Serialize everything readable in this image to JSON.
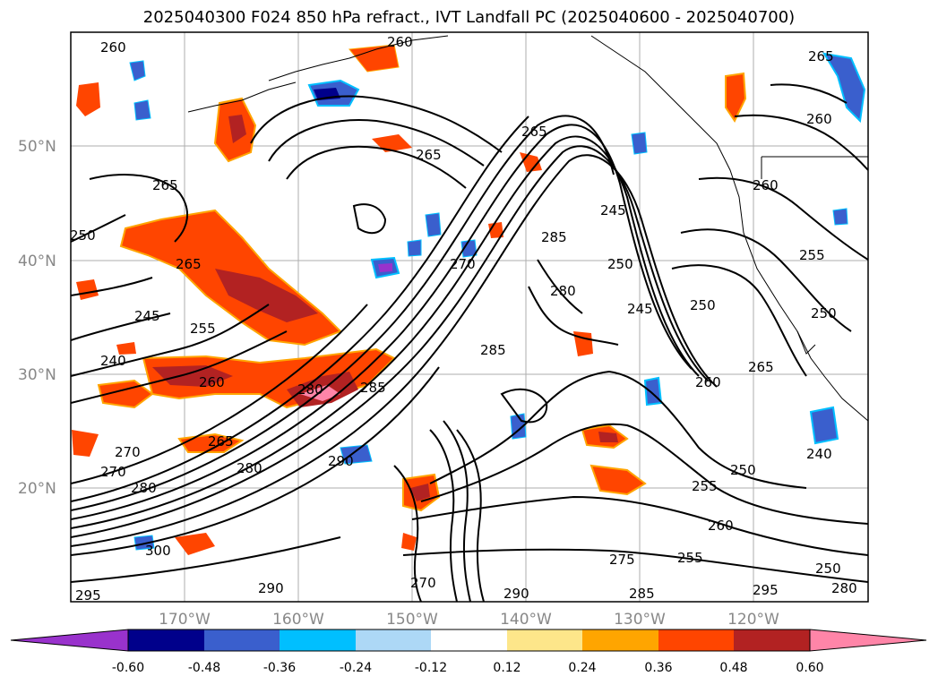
{
  "title": "2025040300 F024 850 hPa refract., IVT Landfall PC (2025040600 - 2025040700)",
  "latitude_labels": [
    "50°N",
    "40°N",
    "30°N",
    "20°N"
  ],
  "longitude_labels": [
    "170°W",
    "160°W",
    "150°W",
    "140°W",
    "130°W",
    "120°W"
  ],
  "colorbar": {
    "colors": [
      "#9932cc",
      "#00008b",
      "#3a5fcd",
      "#00bfff",
      "#add8f6",
      "#ffffff",
      "#fde68a",
      "#ffa500",
      "#ff4500",
      "#b22222",
      "#ff85a8"
    ],
    "tick_labels": [
      "-0.60",
      "-0.48",
      "-0.36",
      "-0.24",
      "-0.12",
      "0.12",
      "0.24",
      "0.36",
      "0.48",
      "0.60"
    ]
  },
  "contour_labels": [
    "260",
    "260",
    "265",
    "265",
    "250",
    "265",
    "245",
    "255",
    "240",
    "260",
    "265",
    "270",
    "280",
    "270",
    "280",
    "285",
    "290",
    "300",
    "295",
    "285",
    "280",
    "245",
    "250",
    "265",
    "250",
    "260",
    "255",
    "260",
    "255",
    "285",
    "270",
    "280",
    "290",
    "260",
    "265",
    "250",
    "245",
    "240",
    "250",
    "255",
    "260",
    "265",
    "295",
    "280",
    "250",
    "270",
    "290",
    "285",
    "275"
  ]
}
